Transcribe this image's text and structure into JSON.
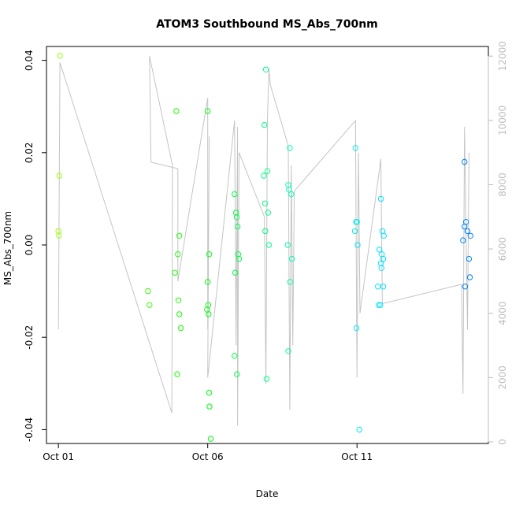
{
  "chart_data": {
    "type": "scatter",
    "title": "ATOM3 Southbound MS_Abs_700nm",
    "xlabel": "Date",
    "ylabel": "MS_Abs_700nm",
    "x_ticks": [
      "Oct 01",
      "Oct 06",
      "Oct 11"
    ],
    "xlim": [
      -0.4,
      14.4
    ],
    "ylim": [
      -0.043,
      0.043
    ],
    "y_ticks": [
      "-0.04",
      "-0.02",
      "0.00",
      "0.02",
      "0.04"
    ],
    "y2lim": [
      -50,
      12300
    ],
    "y2_ticks": [
      "0",
      "2000",
      "4000",
      "6000",
      "8000",
      "10000",
      "12000"
    ],
    "grid": false,
    "points": [
      [
        0.05,
        0.041
      ],
      [
        0.03,
        0.015
      ],
      [
        0.0,
        0.003
      ],
      [
        0.02,
        0.002
      ],
      [
        3.0,
        -0.01
      ],
      [
        3.05,
        -0.013
      ],
      [
        3.9,
        -0.006
      ],
      [
        4.0,
        -0.002
      ],
      [
        4.05,
        0.002
      ],
      [
        3.95,
        0.029
      ],
      [
        4.02,
        -0.012
      ],
      [
        4.05,
        -0.015
      ],
      [
        4.1,
        -0.018
      ],
      [
        3.98,
        -0.028
      ],
      [
        5.0,
        0.029
      ],
      [
        5.05,
        -0.002
      ],
      [
        5.0,
        -0.008
      ],
      [
        5.02,
        -0.013
      ],
      [
        4.98,
        -0.014
      ],
      [
        5.03,
        -0.015
      ],
      [
        5.05,
        -0.032
      ],
      [
        5.06,
        -0.035
      ],
      [
        5.1,
        -0.042
      ],
      [
        5.9,
        0.011
      ],
      [
        5.95,
        0.007
      ],
      [
        5.97,
        0.006
      ],
      [
        6.0,
        0.004
      ],
      [
        6.02,
        -0.002
      ],
      [
        6.05,
        -0.003
      ],
      [
        5.92,
        -0.006
      ],
      [
        5.9,
        -0.024
      ],
      [
        5.98,
        -0.028
      ],
      [
        6.95,
        0.038
      ],
      [
        6.9,
        0.026
      ],
      [
        7.0,
        0.016
      ],
      [
        6.88,
        0.015
      ],
      [
        6.92,
        0.009
      ],
      [
        7.02,
        0.007
      ],
      [
        6.93,
        0.003
      ],
      [
        7.05,
        0.0
      ],
      [
        6.97,
        -0.029
      ],
      [
        7.75,
        0.021
      ],
      [
        7.7,
        0.013
      ],
      [
        7.72,
        0.012
      ],
      [
        7.8,
        0.011
      ],
      [
        7.68,
        0.0
      ],
      [
        7.82,
        -0.003
      ],
      [
        7.76,
        -0.008
      ],
      [
        7.7,
        -0.023
      ],
      [
        9.95,
        0.021
      ],
      [
        9.97,
        0.005
      ],
      [
        10.0,
        0.005
      ],
      [
        9.93,
        0.003
      ],
      [
        10.02,
        0.0
      ],
      [
        9.98,
        -0.018
      ],
      [
        10.08,
        -0.04
      ],
      [
        10.8,
        0.01
      ],
      [
        10.85,
        0.003
      ],
      [
        10.9,
        0.002
      ],
      [
        10.75,
        -0.001
      ],
      [
        10.83,
        -0.002
      ],
      [
        10.88,
        -0.003
      ],
      [
        10.8,
        -0.004
      ],
      [
        10.82,
        -0.005
      ],
      [
        10.7,
        -0.009
      ],
      [
        10.88,
        -0.009
      ],
      [
        10.73,
        -0.013
      ],
      [
        10.78,
        -0.013
      ],
      [
        13.6,
        0.018
      ],
      [
        13.65,
        0.005
      ],
      [
        13.6,
        0.004
      ],
      [
        13.7,
        0.003
      ],
      [
        13.8,
        0.002
      ],
      [
        13.55,
        0.001
      ],
      [
        13.75,
        -0.003
      ],
      [
        13.78,
        -0.007
      ],
      [
        13.62,
        -0.009
      ]
    ],
    "series_right": {
      "name": "",
      "color": "#c4c4c4",
      "polyline": [
        [
          0.0,
          3500
        ],
        [
          0.05,
          11800
        ],
        [
          3.8,
          900
        ],
        [
          3.82,
          8600
        ],
        [
          3.05,
          12000
        ],
        [
          3.1,
          8700
        ],
        [
          4.0,
          8500
        ],
        [
          4.0,
          5000
        ],
        [
          5.0,
          10700
        ],
        [
          5.0,
          3500
        ],
        [
          5.05,
          9500
        ],
        [
          5.0,
          2000
        ],
        [
          5.9,
          10000
        ],
        [
          5.95,
          3000
        ],
        [
          6.0,
          9800
        ],
        [
          6.0,
          500
        ],
        [
          6.05,
          9000
        ],
        [
          6.9,
          7000
        ],
        [
          6.95,
          1800
        ],
        [
          7.0,
          10000
        ],
        [
          7.05,
          11600
        ],
        [
          7.1,
          11100
        ],
        [
          7.7,
          9200
        ],
        [
          7.75,
          1000
        ],
        [
          7.8,
          8600
        ],
        [
          7.85,
          3000
        ],
        [
          7.9,
          7800
        ],
        [
          9.95,
          10000
        ],
        [
          10.0,
          2000
        ],
        [
          10.05,
          9000
        ],
        [
          10.1,
          4000
        ],
        [
          10.8,
          8800
        ],
        [
          10.85,
          4300
        ],
        [
          13.5,
          4900
        ],
        [
          13.55,
          1500
        ],
        [
          13.6,
          9800
        ],
        [
          13.7,
          3500
        ],
        [
          13.75,
          9000
        ]
      ]
    }
  }
}
